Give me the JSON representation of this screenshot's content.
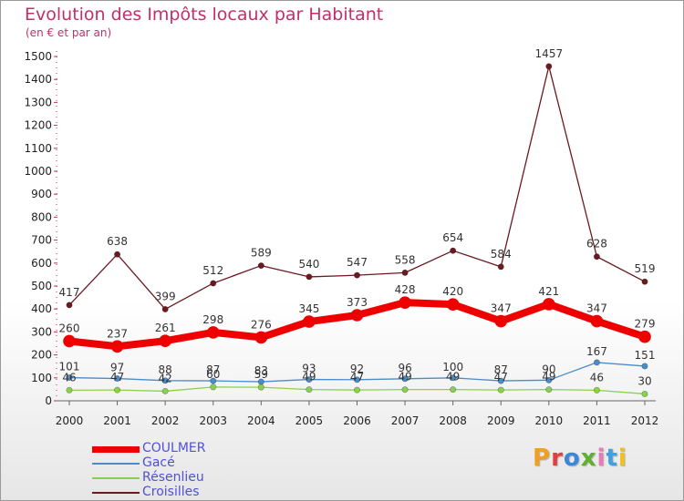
{
  "title": "Evolution des Impôts locaux par Habitant",
  "subtitle": "(en € et par an)",
  "logo": {
    "text": "Proxiti",
    "colors": [
      "#f0a020",
      "#e04040",
      "#3a88d8",
      "#60b030",
      "#e87ab8",
      "#40a0e0",
      "#f0c020"
    ]
  },
  "chart_data": {
    "type": "line",
    "x": [
      "2000",
      "2001",
      "2002",
      "2003",
      "2004",
      "2005",
      "2006",
      "2007",
      "2008",
      "2009",
      "2010",
      "2011",
      "2012"
    ],
    "ylim": [
      0,
      1500
    ],
    "yticks": [
      "0",
      "100",
      "200",
      "300",
      "400",
      "500",
      "600",
      "700",
      "800",
      "900",
      "1000",
      "1100",
      "1200",
      "1300",
      "1400",
      "1500"
    ],
    "grid": false,
    "legend_position": "bottom-left",
    "series": [
      {
        "name": "Croisilles",
        "color": "#6b1a22",
        "values": [
          417,
          638,
          399,
          512,
          589,
          540,
          547,
          558,
          654,
          584,
          1457,
          628,
          519
        ],
        "labels": [
          "417",
          "638",
          "399",
          "512",
          "589",
          "540",
          "547",
          "558",
          "654",
          "584",
          "1457",
          "628",
          "519"
        ]
      },
      {
        "name": "Gacé",
        "color": "#4a8cc8",
        "values": [
          101,
          97,
          88,
          87,
          83,
          93,
          92,
          96,
          100,
          87,
          90,
          167,
          151
        ],
        "labels": [
          "101",
          "97",
          "88",
          "87",
          "83",
          "93",
          "92",
          "96",
          "100",
          "87",
          "90",
          "167",
          "151"
        ]
      },
      {
        "name": "Résenlieu",
        "color": "#8ad14a",
        "values": [
          46,
          47,
          42,
          60,
          59,
          49,
          47,
          49,
          49,
          47,
          49,
          46,
          30
        ],
        "labels": [
          "46",
          "47",
          "42",
          "60",
          "59",
          "49",
          "47",
          "49",
          "49",
          "47",
          "49",
          "46",
          "30"
        ]
      },
      {
        "name": "COULMER",
        "color": "#ee0000",
        "values": [
          260,
          237,
          261,
          298,
          276,
          345,
          373,
          428,
          420,
          347,
          421,
          347,
          279
        ],
        "labels": [
          "260",
          "237",
          "261",
          "298",
          "276",
          "345",
          "373",
          "428",
          "420",
          "347",
          "421",
          "347",
          "279"
        ]
      }
    ],
    "legend_order": [
      "COULMER",
      "Gacé",
      "Résenlieu",
      "Croisilles"
    ]
  }
}
